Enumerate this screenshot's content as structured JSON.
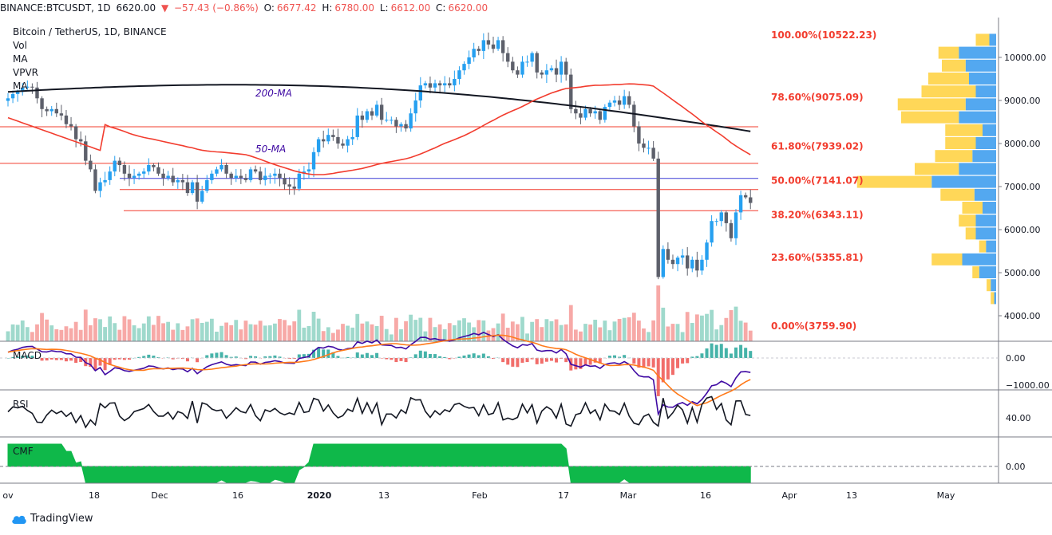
{
  "header": {
    "symbol": "BINANCE:BTCUSDT, 1D",
    "last": "6620.00",
    "change": "−57.43 (−0.86%)",
    "open_label": "O:",
    "open": "6677.42",
    "high_label": "H:",
    "high": "6780.00",
    "low_label": "L:",
    "low": "6612.00",
    "close_label": "C:",
    "close": "6620.00",
    "down_arrow": "▼"
  },
  "legend": {
    "title": "Bitcoin / TetherUS, 1D, BINANCE",
    "items": [
      "Vol",
      "MA",
      "VPVR",
      "MA"
    ]
  },
  "annotations": {
    "ma200": "200-MA",
    "ma50": "50-MA"
  },
  "fib_levels": [
    {
      "label": "100.00%(10522.23)",
      "value": 10522.23
    },
    {
      "label": "78.60%(9075.09)",
      "value": 9075.09
    },
    {
      "label": "61.80%(7939.02)",
      "value": 7939.02
    },
    {
      "label": "50.00%(7141.07)",
      "value": 7141.07
    },
    {
      "label": "38.20%(6343.11)",
      "value": 6343.11
    },
    {
      "label": "23.60%(5355.81)",
      "value": 5355.81
    },
    {
      "label": "0.00%(3759.90)",
      "value": 3759.9
    }
  ],
  "panes": {
    "macd": {
      "label": "MACD",
      "ticks": [
        "0.00",
        "−1000.00"
      ]
    },
    "rsi": {
      "label": "RSI",
      "ticks": [
        "40.00"
      ]
    },
    "cmf": {
      "label": "CMF",
      "ticks": [
        "0.00"
      ]
    }
  },
  "footer": {
    "brand": "TradingView"
  },
  "colors": {
    "up": "#26a0f0",
    "down": "#5d606b",
    "ma50": "#f23c2e",
    "ma200": "#131722",
    "hline_red": "#f23c2e",
    "hline_blue": "#3b3bd6",
    "vol_up": "#9fd9cc",
    "vol_down": "#f7a9a7",
    "vpvr_up": "#4aa3ef",
    "vpvr_down": "#ffd54f",
    "macd": "#3f0aa3",
    "signal": "#ff7a1a",
    "cmf": "#0fb84a"
  },
  "chart_data": {
    "type": "candlestick",
    "title": "Bitcoin / TetherUS, 1D, BINANCE",
    "x_ticks": [
      "ov",
      "18",
      "Dec",
      "16",
      "2020",
      "13",
      "Feb",
      "17",
      "Mar",
      "16",
      "Apr",
      "13",
      "May"
    ],
    "y_ticks": [
      "10000.00",
      "9000.00",
      "8000.00",
      "7000.00",
      "6000.00",
      "5000.00",
      "4000.00"
    ],
    "y_range": [
      3550,
      10900
    ],
    "closes": [
      9050,
      9150,
      9200,
      9300,
      9320,
      9300,
      9050,
      8800,
      8750,
      8800,
      8700,
      8650,
      8450,
      8400,
      8100,
      8050,
      7600,
      7400,
      6900,
      7100,
      7150,
      7350,
      7600,
      7500,
      7300,
      7200,
      7250,
      7300,
      7350,
      7500,
      7450,
      7300,
      7200,
      7250,
      7100,
      7150,
      7100,
      6850,
      7100,
      6650,
      6900,
      7150,
      7300,
      7400,
      7500,
      7300,
      7200,
      7250,
      7200,
      7150,
      7400,
      7350,
      7150,
      7250,
      7250,
      7300,
      7200,
      7050,
      7000,
      6950,
      7300,
      7350,
      7400,
      7800,
      8100,
      8050,
      8200,
      8150,
      8000,
      7950,
      8100,
      8150,
      8650,
      8550,
      8750,
      8650,
      8900,
      8550,
      8550,
      8550,
      8400,
      8450,
      8350,
      8700,
      9000,
      9350,
      9400,
      9300,
      9400,
      9350,
      9400,
      9350,
      9500,
      9700,
      9850,
      10000,
      10200,
      10150,
      10400,
      10300,
      10200,
      10400,
      10100,
      9900,
      9700,
      9600,
      9900,
      9900,
      10100,
      9650,
      9600,
      9700,
      9750,
      9600,
      9900,
      9600,
      8800,
      8700,
      8600,
      8800,
      8700,
      8750,
      8550,
      8850,
      8950,
      9000,
      8900,
      9100,
      8900,
      8400,
      8000,
      7900,
      7900,
      7650,
      4900,
      5550,
      5300,
      5200,
      5350,
      5400,
      5100,
      5300,
      5050,
      5300,
      5700,
      6200,
      6200,
      6400,
      6150,
      5800,
      6400,
      6800,
      6750,
      6620
    ],
    "vpvr": [
      {
        "price": 10400,
        "up": 20,
        "down": 10
      },
      {
        "price": 10100,
        "up": 30,
        "down": 55
      },
      {
        "price": 9800,
        "up": 35,
        "down": 45
      },
      {
        "price": 9500,
        "up": 60,
        "down": 40
      },
      {
        "price": 9200,
        "up": 80,
        "down": 30
      },
      {
        "price": 8900,
        "up": 100,
        "down": 45
      },
      {
        "price": 8600,
        "up": 85,
        "down": 55
      },
      {
        "price": 8300,
        "up": 55,
        "down": 20
      },
      {
        "price": 8000,
        "up": 45,
        "down": 30
      },
      {
        "price": 7700,
        "up": 55,
        "down": 35
      },
      {
        "price": 7400,
        "up": 65,
        "down": 55
      },
      {
        "price": 7100,
        "up": 110,
        "down": 95
      },
      {
        "price": 6800,
        "up": 50,
        "down": 32
      },
      {
        "price": 6500,
        "up": 30,
        "down": 20
      },
      {
        "price": 6200,
        "up": 25,
        "down": 30
      },
      {
        "price": 5900,
        "up": 15,
        "down": 30
      },
      {
        "price": 5600,
        "up": 10,
        "down": 15
      },
      {
        "price": 5300,
        "up": 45,
        "down": 50
      },
      {
        "price": 5000,
        "up": 10,
        "down": 25
      },
      {
        "price": 4700,
        "up": 6,
        "down": 8
      },
      {
        "price": 4400,
        "up": 5,
        "down": 3
      }
    ]
  }
}
